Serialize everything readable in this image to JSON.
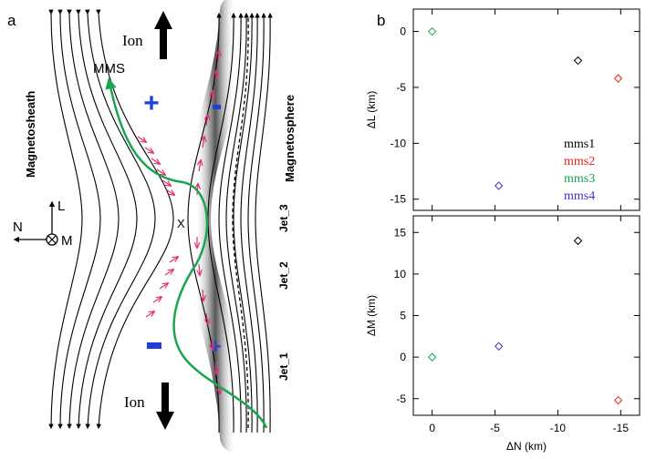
{
  "panel_a": {
    "panel_label": "a",
    "region_left": "Magnetosheath",
    "region_right": "Magnetosphere",
    "spacecraft": "MMS",
    "ion_label": "Ion",
    "xline_label": "X",
    "jets": [
      "Jet_3",
      "Jet_2",
      "Jet_1"
    ],
    "axes": {
      "n": "N",
      "l": "L",
      "m": "M"
    },
    "plus_sign": "+",
    "minus_sign": "−",
    "colors": {
      "trajectory": "#1aa550",
      "arrows": "#e0306e",
      "charges": "#1f3fd8"
    }
  },
  "panel_b": {
    "panel_label": "b",
    "legend": [
      {
        "name": "mms1",
        "color": "#000000"
      },
      {
        "name": "mms2",
        "color": "#e8231b"
      },
      {
        "name": "mms3",
        "color": "#1aa550"
      },
      {
        "name": "mms4",
        "color": "#4b2fd0"
      }
    ]
  },
  "chart_data": [
    {
      "type": "scatter",
      "xlabel": "",
      "ylabel": "ΔL (km)",
      "xlim": [
        1.5,
        -16.5
      ],
      "ylim": [
        -16,
        2
      ],
      "xticks": [
        0,
        -5,
        -10,
        -15
      ],
      "yticks": [
        0,
        -5,
        -10,
        -15
      ],
      "series": [
        {
          "name": "mms1",
          "color": "#000000",
          "x": [
            -11.6
          ],
          "y": [
            -2.6
          ]
        },
        {
          "name": "mms2",
          "color": "#e8231b",
          "x": [
            -14.8
          ],
          "y": [
            -4.2
          ]
        },
        {
          "name": "mms3",
          "color": "#1aa550",
          "x": [
            0.0
          ],
          "y": [
            0.0
          ]
        },
        {
          "name": "mms4",
          "color": "#4b2fd0",
          "x": [
            -5.3
          ],
          "y": [
            -13.8
          ]
        }
      ]
    },
    {
      "type": "scatter",
      "xlabel": "ΔN (km)",
      "ylabel": "ΔM (km)",
      "xlim": [
        1.5,
        -16.5
      ],
      "ylim": [
        -7,
        17
      ],
      "xticks": [
        0,
        -5,
        -10,
        -15
      ],
      "yticks": [
        -5,
        0,
        5,
        10,
        15
      ],
      "series": [
        {
          "name": "mms1",
          "color": "#000000",
          "x": [
            -11.6
          ],
          "y": [
            14.0
          ]
        },
        {
          "name": "mms2",
          "color": "#e8231b",
          "x": [
            -14.8
          ],
          "y": [
            -5.2
          ]
        },
        {
          "name": "mms3",
          "color": "#1aa550",
          "x": [
            0.0
          ],
          "y": [
            0.0
          ]
        },
        {
          "name": "mms4",
          "color": "#4b2fd0",
          "x": [
            -5.3
          ],
          "y": [
            1.3
          ]
        }
      ]
    }
  ]
}
